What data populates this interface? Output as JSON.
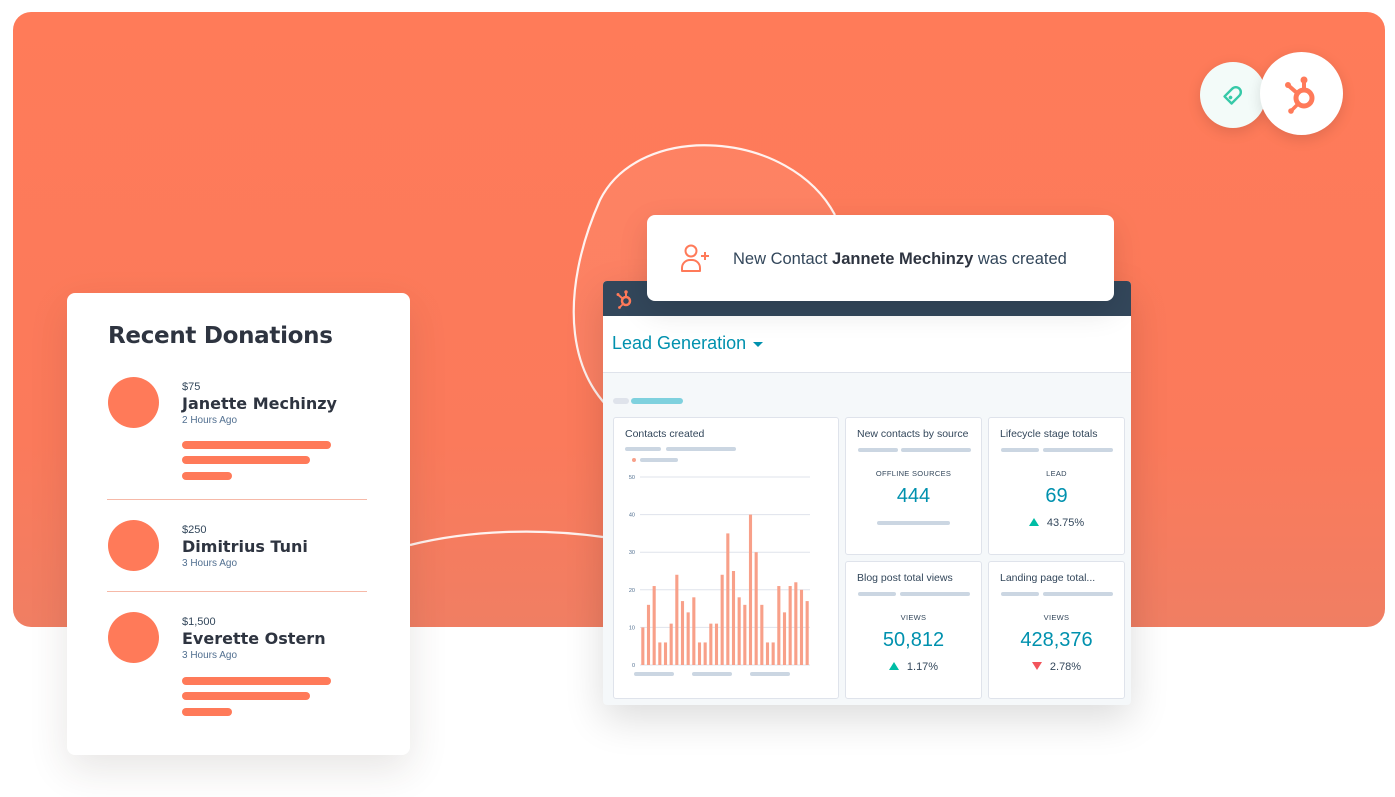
{
  "colors": {
    "brand_orange": "#ff7a59",
    "teal": "#0091ae",
    "nav": "#33475b",
    "up": "#00bda5",
    "down": "#f2545b",
    "bar": "#f8a089"
  },
  "logos": [
    {
      "icon": "heart-tag-icon"
    },
    {
      "icon": "hubspot-sprocket-icon"
    }
  ],
  "donations": {
    "title": "Recent Donations",
    "items": [
      {
        "amount": "$75",
        "name": "Janette Mechinzy",
        "time": "2 Hours Ago"
      },
      {
        "amount": "$250",
        "name": "Dimitrius Tuni",
        "time": "3 Hours Ago"
      },
      {
        "amount": "$1,500",
        "name": "Everette Ostern",
        "time": "3 Hours Ago"
      }
    ]
  },
  "notification": {
    "icon": "add-user-icon",
    "prefix": "New Contact ",
    "name": "Jannete Mechinzy",
    "suffix": " was created"
  },
  "dashboard": {
    "title": "Lead Generation",
    "cards": {
      "contacts_created": {
        "title": "Contacts created"
      },
      "new_contacts": {
        "title": "New contacts by source",
        "label": "OFFLINE SOURCES",
        "value": "444"
      },
      "lifecycle": {
        "title": "Lifecycle stage totals",
        "label": "LEAD",
        "value": "69",
        "change": "43.75%",
        "direction": "up"
      },
      "blog_views": {
        "title": "Blog post total views",
        "label": "VIEWS",
        "value": "50,812",
        "change": "1.17%",
        "direction": "up"
      },
      "landing_views": {
        "title": "Landing page total...",
        "label": "VIEWS",
        "value": "428,376",
        "change": "2.78%",
        "direction": "down"
      }
    }
  },
  "chart_data": {
    "type": "bar",
    "title": "Contacts created",
    "ylim": [
      0,
      50
    ],
    "yticks": [
      "0",
      "10",
      "20",
      "30",
      "40",
      "50"
    ],
    "grid": true,
    "values": [
      10,
      16,
      21,
      6,
      6,
      11,
      24,
      17,
      14,
      18,
      6,
      6,
      11,
      11,
      24,
      35,
      25,
      18,
      16,
      40,
      30,
      16,
      6,
      6,
      21,
      14,
      21,
      22,
      20,
      17
    ]
  }
}
